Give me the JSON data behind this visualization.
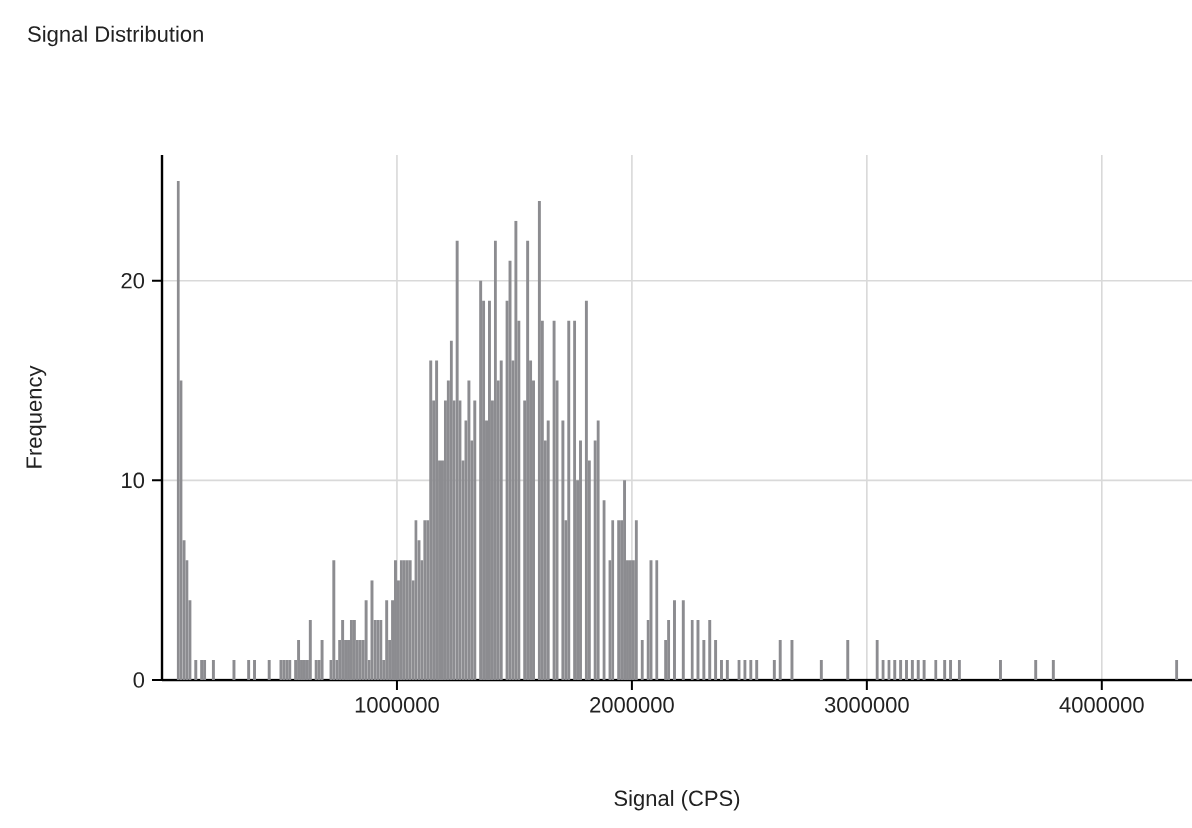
{
  "chart_data": {
    "type": "histogram",
    "title": "Signal Distribution",
    "xlabel": "Signal (CPS)",
    "ylabel": "Frequency",
    "color": "#8c8c90",
    "grid": true,
    "xlim": [
      0,
      4384000
    ],
    "ylim": [
      0,
      26.3
    ],
    "xticks": [
      1000000,
      2000000,
      3000000,
      4000000
    ],
    "yticks": [
      0,
      10,
      20
    ],
    "bins": [
      0,
      12500,
      25000,
      37500,
      50000,
      62500,
      75000,
      87500,
      100000,
      112500,
      125000,
      137500,
      150000,
      162500,
      175000,
      187500,
      200000,
      212500,
      225000,
      237500,
      250000,
      262500,
      275000,
      287500,
      300000,
      312500,
      325000,
      337500,
      350000,
      362500,
      375000,
      387500,
      400000,
      412500,
      425000,
      437500,
      450000,
      462500,
      475000,
      487500,
      500000,
      512500,
      525000,
      537500,
      550000,
      562500,
      575000,
      587500,
      600000,
      612500,
      625000,
      637500,
      650000,
      662500,
      675000,
      687500,
      700000,
      712500,
      725000,
      737500,
      750000,
      762500,
      775000,
      787500,
      800000,
      812500,
      825000,
      837500,
      850000,
      862500,
      875000,
      887500,
      900000,
      912500,
      925000,
      937500,
      950000,
      962500,
      975000,
      987500,
      1000000,
      1012500,
      1025000,
      1037500,
      1050000,
      1062500,
      1075000,
      1087500,
      1100000,
      1112500,
      1125000,
      1137500,
      1150000,
      1162500,
      1175000,
      1187500,
      1200000,
      1212500,
      1225000,
      1237500,
      1250000,
      1262500,
      1275000,
      1287500,
      1300000,
      1312500,
      1325000,
      1337500,
      1350000,
      1362500,
      1375000,
      1387500,
      1400000,
      1412500,
      1425000,
      1437500,
      1450000,
      1462500,
      1475000,
      1487500,
      1500000,
      1512500,
      1525000,
      1537500,
      1550000,
      1562500,
      1575000,
      1587500,
      1600000,
      1612500,
      1625000,
      1637500,
      1650000,
      1662500,
      1675000,
      1687500,
      1700000,
      1712500,
      1725000,
      1737500,
      1750000,
      1762500,
      1775000,
      1787500,
      1800000,
      1812500,
      1825000,
      1837500,
      1850000,
      1862500,
      1875000,
      1887500,
      1900000,
      1912500,
      1925000,
      1937500,
      1950000,
      1962500,
      1975000,
      1987500,
      2000000,
      2012500,
      2025000,
      2037500,
      2050000,
      2062500,
      2075000,
      2087500,
      2100000,
      2112500,
      2125000,
      2137500,
      2150000,
      2162500,
      2175000,
      2187500,
      2200000,
      2212500,
      2225000,
      2237500,
      2250000,
      2262500,
      2275000,
      2287500,
      2300000,
      2312500,
      2325000,
      2337500,
      2350000,
      2362500,
      2375000,
      2387500,
      2400000,
      2412500,
      2425000,
      2437500,
      2450000,
      2462500,
      2475000,
      2487500,
      2500000,
      2512500,
      2525000,
      2537500,
      2550000,
      2562500,
      2575000,
      2587500,
      2600000,
      2612500,
      2625000,
      2637500,
      2650000,
      2662500,
      2675000,
      2687500,
      2700000,
      2712500,
      2725000,
      2737500,
      2750000,
      2762500,
      2775000,
      2787500,
      2800000,
      2812500,
      2825000,
      2837500,
      2850000,
      2862500,
      2875000,
      2887500,
      2900000,
      2912500,
      2925000,
      2937500,
      2950000,
      2962500,
      2975000,
      2987500,
      3000000,
      3012500,
      3025000,
      3037500,
      3050000,
      3062500,
      3075000,
      3087500,
      3100000,
      3112500,
      3125000,
      3137500,
      3150000,
      3162500,
      3175000,
      3187500,
      3200000,
      3212500,
      3225000,
      3237500,
      3250000,
      3262500,
      3275000,
      3287500,
      3300000,
      3312500,
      3325000,
      3337500,
      3350000,
      3362500,
      3375000,
      3387500,
      3400000,
      3412500,
      3425000,
      3437500,
      3450000,
      3462500,
      3475000,
      3487500,
      3500000,
      3512500,
      3525000,
      3537500,
      3550000,
      3562500,
      3575000,
      3587500,
      3600000,
      3612500,
      3625000,
      3637500,
      3650000,
      3662500,
      3675000,
      3687500,
      3700000,
      3712500,
      3725000,
      3737500,
      3750000,
      3762500,
      3775000,
      3787500,
      3800000,
      3812500,
      3825000,
      3837500,
      3850000,
      3862500,
      3875000,
      3887500,
      3900000,
      3912500,
      3925000,
      3937500,
      3950000,
      3962500,
      3975000,
      3987500,
      4000000,
      4012500,
      4025000,
      4037500,
      4050000,
      4062500,
      4075000,
      4087500,
      4100000,
      4112500,
      4125000,
      4137500,
      4150000,
      4162500,
      4175000,
      4187500,
      4200000,
      4212500,
      4225000,
      4237500,
      4250000,
      4262500,
      4275000,
      4287500,
      4300000,
      4312500,
      4325000,
      4337500,
      4350000,
      4362500,
      4375000
    ],
    "values": [
      0,
      0,
      null,
      null,
      null,
      25,
      15,
      7,
      6,
      4,
      0,
      1,
      0,
      1,
      1,
      0,
      0,
      1,
      0,
      0,
      0,
      0,
      0,
      0,
      1,
      0,
      0,
      0,
      0,
      1,
      0,
      1,
      0,
      0,
      0,
      0,
      1,
      0,
      0,
      0,
      1,
      1,
      1,
      1,
      0,
      1,
      2,
      1,
      1,
      1,
      3,
      0,
      1,
      1,
      2,
      0,
      0,
      1,
      6,
      1,
      2,
      3,
      2,
      2,
      3,
      3,
      2,
      2,
      2,
      4,
      1,
      5,
      3,
      3,
      3,
      1,
      4,
      2,
      4,
      6,
      5,
      6,
      6,
      6,
      6,
      5,
      8,
      7,
      6,
      8,
      8,
      16,
      14,
      16,
      11,
      11,
      14,
      15,
      17,
      14,
      22,
      14,
      11,
      13,
      15,
      12,
      14,
      0,
      20,
      19,
      13,
      19,
      14,
      22,
      15,
      16,
      0,
      19,
      21,
      16,
      23,
      18,
      0,
      14,
      22,
      16,
      15,
      0,
      24,
      18,
      12,
      13,
      0,
      18,
      15,
      0,
      13,
      8,
      18,
      0,
      18,
      10,
      12,
      0,
      19,
      11,
      0,
      12,
      13,
      0,
      9,
      0,
      6,
      8,
      0,
      8,
      8,
      10,
      6,
      6,
      6,
      8,
      0,
      2,
      0,
      3,
      6,
      0,
      6,
      0,
      0,
      2,
      3,
      0,
      4,
      0,
      0,
      4,
      0,
      0,
      3,
      0,
      3,
      0,
      2,
      0,
      3,
      0,
      2,
      0,
      1,
      0,
      1,
      0,
      0,
      0,
      1,
      0,
      1,
      0,
      1,
      0,
      1,
      0,
      0,
      0,
      0,
      0,
      1,
      0,
      2,
      0,
      0,
      0,
      2,
      0,
      0,
      0,
      0,
      0,
      0,
      0,
      0,
      0,
      1,
      0,
      0,
      0,
      0,
      0,
      0,
      0,
      0,
      2,
      0,
      0,
      0,
      0,
      0,
      0,
      0,
      0,
      0,
      2,
      0,
      1,
      0,
      1,
      0,
      1,
      0,
      1,
      0,
      1,
      0,
      1,
      0,
      1,
      0,
      1,
      0,
      0,
      0,
      1,
      0,
      0,
      1,
      0,
      1,
      0,
      0,
      1,
      0,
      0,
      0,
      0,
      0,
      0,
      0,
      0,
      0,
      0,
      0,
      0,
      0,
      1,
      0,
      0,
      0,
      0,
      0,
      0,
      0,
      0,
      0,
      0,
      0,
      1,
      0,
      0,
      0,
      0,
      0,
      1,
      0,
      0,
      0,
      0,
      0,
      0,
      0,
      0,
      0,
      0,
      0,
      0,
      0,
      0,
      0,
      0,
      0,
      0,
      0,
      0,
      0,
      0,
      0,
      0,
      0,
      0,
      0,
      0,
      0,
      0,
      0,
      0,
      0,
      0,
      0,
      0,
      0,
      0,
      0,
      0,
      0,
      1,
      0,
      0,
      0,
      0
    ]
  }
}
